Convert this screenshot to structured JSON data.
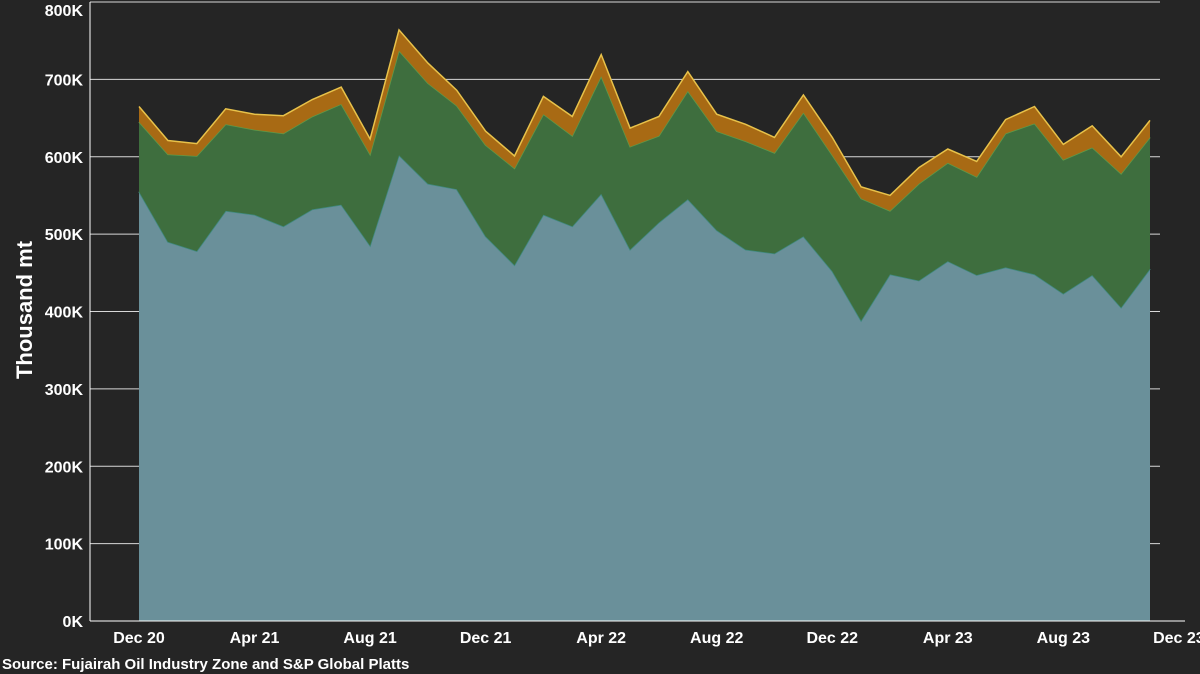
{
  "chart_data": {
    "type": "area",
    "stacked": true,
    "ylabel": "Thousand mt",
    "ylim": [
      0,
      800
    ],
    "y_ticks": [
      "0K",
      "100K",
      "200K",
      "300K",
      "400K",
      "500K",
      "600K",
      "700K",
      "800K"
    ],
    "x_tick_labels": [
      "Dec 20",
      "Apr 21",
      "Aug 21",
      "Dec 21",
      "Apr 22",
      "Aug 22",
      "Dec 22",
      "Apr 23",
      "Aug 23",
      "Dec 23"
    ],
    "x_tick_index": [
      0,
      4,
      8,
      12,
      16,
      20,
      24,
      28,
      32,
      36
    ],
    "grid": true,
    "legend": "none",
    "source": "Source: Fujairah Oil Industry Zone and S&P Global Platts",
    "series": [
      {
        "color": "#6a909a",
        "values": [
          555,
          490,
          478,
          530,
          525,
          510,
          532,
          538,
          485,
          602,
          565,
          558,
          497,
          460,
          525,
          510,
          552,
          480,
          515,
          545,
          505,
          480,
          475,
          497,
          452,
          388,
          448,
          440,
          465,
          447,
          457,
          448,
          423,
          447,
          405,
          455
        ]
      },
      {
        "color": "#3e6e3e",
        "values": [
          90,
          113,
          123,
          112,
          110,
          120,
          120,
          130,
          118,
          135,
          130,
          108,
          118,
          125,
          130,
          117,
          152,
          133,
          112,
          140,
          128,
          140,
          130,
          160,
          150,
          158,
          82,
          125,
          127,
          127,
          173,
          195,
          173,
          165,
          173,
          170
        ]
      },
      {
        "color": "#a86a14",
        "values": [
          20,
          18,
          16,
          20,
          20,
          23,
          22,
          22,
          20,
          27,
          26,
          20,
          18,
          16,
          23,
          25,
          28,
          24,
          25,
          25,
          22,
          22,
          20,
          23,
          23,
          15,
          20,
          21,
          18,
          20,
          18,
          22,
          20,
          28,
          22,
          22
        ]
      }
    ]
  }
}
